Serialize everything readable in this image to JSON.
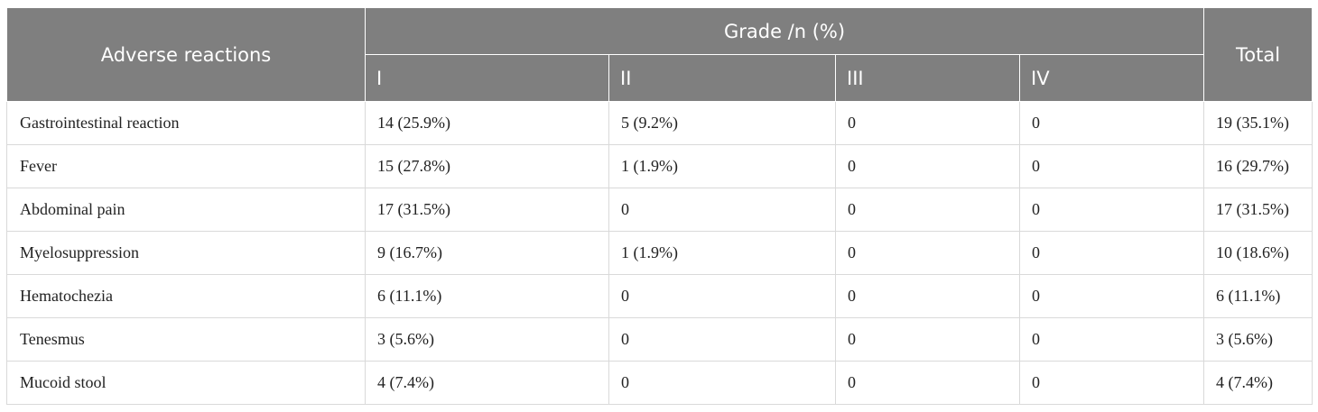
{
  "table": {
    "header": {
      "adverse": "Adverse reactions",
      "grade": "Grade /n (%)",
      "total": "Total",
      "grades": [
        "I",
        "II",
        "III",
        "IV"
      ]
    },
    "rows": [
      {
        "name": "Gastrointestinal reaction",
        "cells": [
          "14 (25.9%)",
          "5 (9.2%)",
          "0",
          "0",
          "19 (35.1%)"
        ]
      },
      {
        "name": "Fever",
        "cells": [
          "15 (27.8%)",
          "1 (1.9%)",
          "0",
          "0",
          "16 (29.7%)"
        ]
      },
      {
        "name": "Abdominal pain",
        "cells": [
          "17 (31.5%)",
          "0",
          "0",
          "0",
          "17 (31.5%)"
        ]
      },
      {
        "name": "Myelosuppression",
        "cells": [
          "9 (16.7%)",
          "1 (1.9%)",
          "0",
          "0",
          "10 (18.6%)"
        ]
      },
      {
        "name": "Hematochezia",
        "cells": [
          "6 (11.1%)",
          "0",
          "0",
          "0",
          "6 (11.1%)"
        ]
      },
      {
        "name": "Tenesmus",
        "cells": [
          "3 (5.6%)",
          "0",
          "0",
          "0",
          "3 (5.6%)"
        ]
      },
      {
        "name": "Mucoid stool",
        "cells": [
          "4 (7.4%)",
          "0",
          "0",
          "0",
          "4 (7.4%)"
        ]
      }
    ]
  },
  "colors": {
    "header_bg": "#7f7f7f",
    "header_text": "#ffffff",
    "grid": "#d9d9d9"
  }
}
